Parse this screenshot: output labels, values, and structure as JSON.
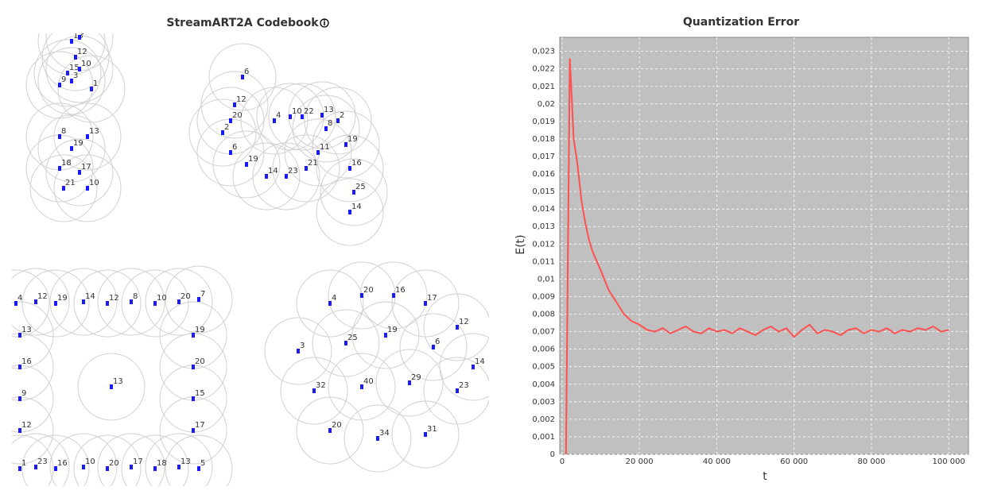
{
  "chart_data": [
    {
      "type": "scatter",
      "title": "StreamART2A Codebook",
      "color": "#1a1aff",
      "xlim": [
        0,
        600
      ],
      "ylim": [
        570,
        0
      ],
      "x": [
        75,
        85,
        80,
        70,
        85,
        60,
        100,
        75,
        60,
        95,
        75,
        60,
        85,
        65,
        95,
        290,
        280,
        275,
        265,
        275,
        295,
        320,
        345,
        370,
        385,
        395,
        410,
        420,
        425,
        430,
        425,
        330,
        350,
        365,
        390,
        5,
        30,
        55,
        90,
        120,
        150,
        180,
        210,
        235,
        10,
        30,
        55,
        90,
        120,
        150,
        180,
        210,
        235,
        10,
        10,
        10,
        10,
        228,
        228,
        228,
        228,
        125,
        400,
        440,
        480,
        520,
        560,
        360,
        420,
        470,
        530,
        580,
        380,
        440,
        500,
        560,
        400,
        460,
        520
      ],
      "values": [
        10,
        5,
        30,
        50,
        45,
        65,
        70,
        60,
        130,
        130,
        145,
        170,
        175,
        195,
        195,
        55,
        90,
        110,
        125,
        150,
        165,
        180,
        180,
        170,
        150,
        120,
        110,
        140,
        170,
        200,
        225,
        110,
        105,
        105,
        103,
        340,
        338,
        340,
        338,
        340,
        338,
        340,
        338,
        335,
        548,
        546,
        548,
        546,
        548,
        546,
        548,
        546,
        548,
        380,
        420,
        460,
        500,
        380,
        420,
        460,
        500,
        445,
        340,
        330,
        330,
        340,
        370,
        400,
        390,
        380,
        395,
        420,
        450,
        445,
        440,
        450,
        500,
        510,
        505
      ],
      "labels": [
        "13",
        "7",
        "12",
        "15",
        "10",
        "9",
        "1",
        "3",
        "8",
        "13",
        "19",
        "18",
        "17",
        "21",
        "10",
        "6",
        "12",
        "20",
        "2",
        "6",
        "19",
        "14",
        "23",
        "21",
        "11",
        "8",
        "2",
        "19",
        "16",
        "25",
        "14",
        "4",
        "10",
        "22",
        "13",
        "4",
        "12",
        "19",
        "14",
        "12",
        "8",
        "10",
        "20",
        "7",
        "1",
        "23",
        "16",
        "10",
        "20",
        "17",
        "18",
        "13",
        "5",
        "13",
        "16",
        "9",
        "12",
        "19",
        "20",
        "15",
        "17",
        "13",
        "4",
        "20",
        "16",
        "17",
        "12",
        "3",
        "25",
        "19",
        "6",
        "14",
        "32",
        "40",
        "29",
        "23",
        "20",
        "34",
        "31"
      ]
    },
    {
      "type": "line",
      "title": "Quantization Error",
      "xlabel": "t",
      "ylabel": "E(t)",
      "color": "#ff5050",
      "grid": true,
      "xlim": [
        -600,
        105100
      ],
      "ylim": [
        0,
        0.0238
      ],
      "xticks": [
        0,
        {
          "value": 20000,
          "label": "20 000"
        },
        {
          "value": 40000,
          "label": "40 000"
        },
        {
          "value": 60000,
          "label": "60 000"
        },
        {
          "value": 80000,
          "label": "80 000"
        },
        {
          "value": 100000,
          "label": "100 000"
        }
      ],
      "yticks": [
        0,
        {
          "value": 0.001,
          "label": "0,001"
        },
        {
          "value": 0.002,
          "label": "0,002"
        },
        {
          "value": 0.003,
          "label": "0,003"
        },
        {
          "value": 0.004,
          "label": "0,004"
        },
        {
          "value": 0.005,
          "label": "0,005"
        },
        {
          "value": 0.006,
          "label": "0,006"
        },
        {
          "value": 0.007,
          "label": "0,007"
        },
        {
          "value": 0.008,
          "label": "0,008"
        },
        {
          "value": 0.009,
          "label": "0,009"
        },
        {
          "value": 0.01,
          "label": "0,01"
        },
        {
          "value": 0.011,
          "label": "0,011"
        },
        {
          "value": 0.012,
          "label": "0,012"
        },
        {
          "value": 0.013,
          "label": "0,013"
        },
        {
          "value": 0.014,
          "label": "0,014"
        },
        {
          "value": 0.015,
          "label": "0,015"
        },
        {
          "value": 0.016,
          "label": "0,016"
        },
        {
          "value": 0.017,
          "label": "0,017"
        },
        {
          "value": 0.018,
          "label": "0,018"
        },
        {
          "value": 0.019,
          "label": "0,019"
        },
        {
          "value": 0.02,
          "label": "0,02"
        },
        {
          "value": 0.021,
          "label": "0,021"
        },
        {
          "value": 0.022,
          "label": "0,022"
        },
        {
          "value": 0.023,
          "label": "0,023"
        }
      ],
      "x": [
        1000,
        2000,
        3000,
        4000,
        5000,
        6000,
        7000,
        8000,
        10000,
        12000,
        14000,
        16000,
        18000,
        20000,
        22000,
        24000,
        26000,
        28000,
        30000,
        32000,
        34000,
        36000,
        38000,
        40000,
        42000,
        44000,
        46000,
        48000,
        50000,
        52000,
        54000,
        56000,
        58000,
        60000,
        62000,
        64000,
        66000,
        68000,
        70000,
        72000,
        74000,
        76000,
        78000,
        80000,
        82000,
        84000,
        86000,
        88000,
        90000,
        92000,
        94000,
        96000,
        98000,
        100000
      ],
      "values": [
        0,
        0.0226,
        0.018,
        0.0165,
        0.0145,
        0.0132,
        0.0122,
        0.0115,
        0.0105,
        0.0094,
        0.0087,
        0.008,
        0.0076,
        0.0074,
        0.0071,
        0.007,
        0.0072,
        0.0069,
        0.0071,
        0.0073,
        0.007,
        0.0069,
        0.0072,
        0.007,
        0.0071,
        0.0069,
        0.0072,
        0.007,
        0.0068,
        0.0071,
        0.0073,
        0.007,
        0.0072,
        0.0067,
        0.0071,
        0.0074,
        0.0069,
        0.0071,
        0.007,
        0.0068,
        0.0071,
        0.0072,
        0.0069,
        0.0071,
        0.007,
        0.0072,
        0.0069,
        0.0071,
        0.007,
        0.0072,
        0.0071,
        0.0073,
        0.007,
        0.0071
      ]
    }
  ]
}
